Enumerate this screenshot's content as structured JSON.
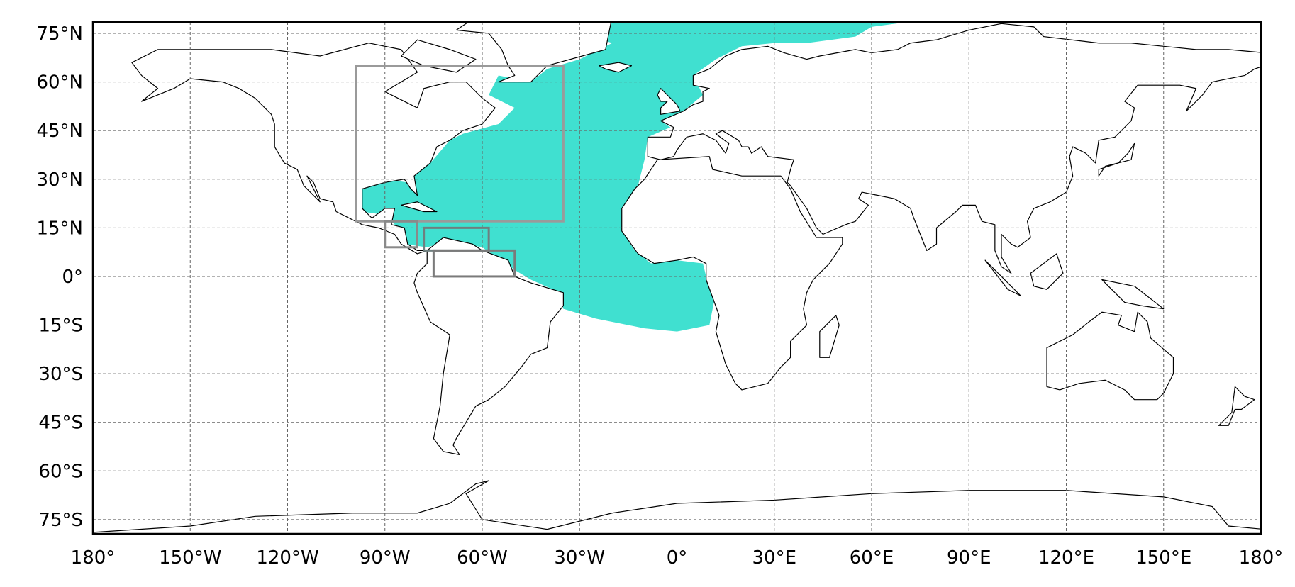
{
  "chart_data": {
    "type": "map",
    "xlim": [
      -180,
      180
    ],
    "ylim": [
      -79.4,
      78.5
    ],
    "xticks": [
      {
        "value": -180,
        "label": "180°"
      },
      {
        "value": -150,
        "label": "150°W"
      },
      {
        "value": -120,
        "label": "120°W"
      },
      {
        "value": -90,
        "label": "90°W"
      },
      {
        "value": -60,
        "label": "60°W"
      },
      {
        "value": -30,
        "label": "30°W"
      },
      {
        "value": 0,
        "label": "0°"
      },
      {
        "value": 30,
        "label": "30°E"
      },
      {
        "value": 60,
        "label": "60°E"
      },
      {
        "value": 90,
        "label": "90°E"
      },
      {
        "value": 120,
        "label": "120°E"
      },
      {
        "value": 150,
        "label": "150°E"
      },
      {
        "value": 180,
        "label": "180°"
      }
    ],
    "yticks": [
      {
        "value": -75,
        "label": "75°S"
      },
      {
        "value": -60,
        "label": "60°S"
      },
      {
        "value": -45,
        "label": "45°S"
      },
      {
        "value": -30,
        "label": "30°S"
      },
      {
        "value": -15,
        "label": "15°S"
      },
      {
        "value": 0,
        "label": "0°"
      },
      {
        "value": 15,
        "label": "15°N"
      },
      {
        "value": 30,
        "label": "30°N"
      },
      {
        "value": 45,
        "label": "45°N"
      },
      {
        "value": 60,
        "label": "60°N"
      },
      {
        "value": 75,
        "label": "75°N"
      }
    ],
    "grid": true,
    "regions": [
      {
        "lon": [
          -99,
          -35
        ],
        "lat": [
          17,
          65
        ],
        "color": "#9a9a9a"
      },
      {
        "lon": [
          -90,
          -80
        ],
        "lat": [
          9,
          17
        ],
        "color": "#8a8a8a"
      },
      {
        "lon": [
          -78,
          -58
        ],
        "lat": [
          8,
          15
        ],
        "color": "#6f7f7f"
      },
      {
        "lon": [
          -75,
          -50
        ],
        "lat": [
          0,
          8
        ],
        "color": "#7a7a7a"
      }
    ]
  }
}
